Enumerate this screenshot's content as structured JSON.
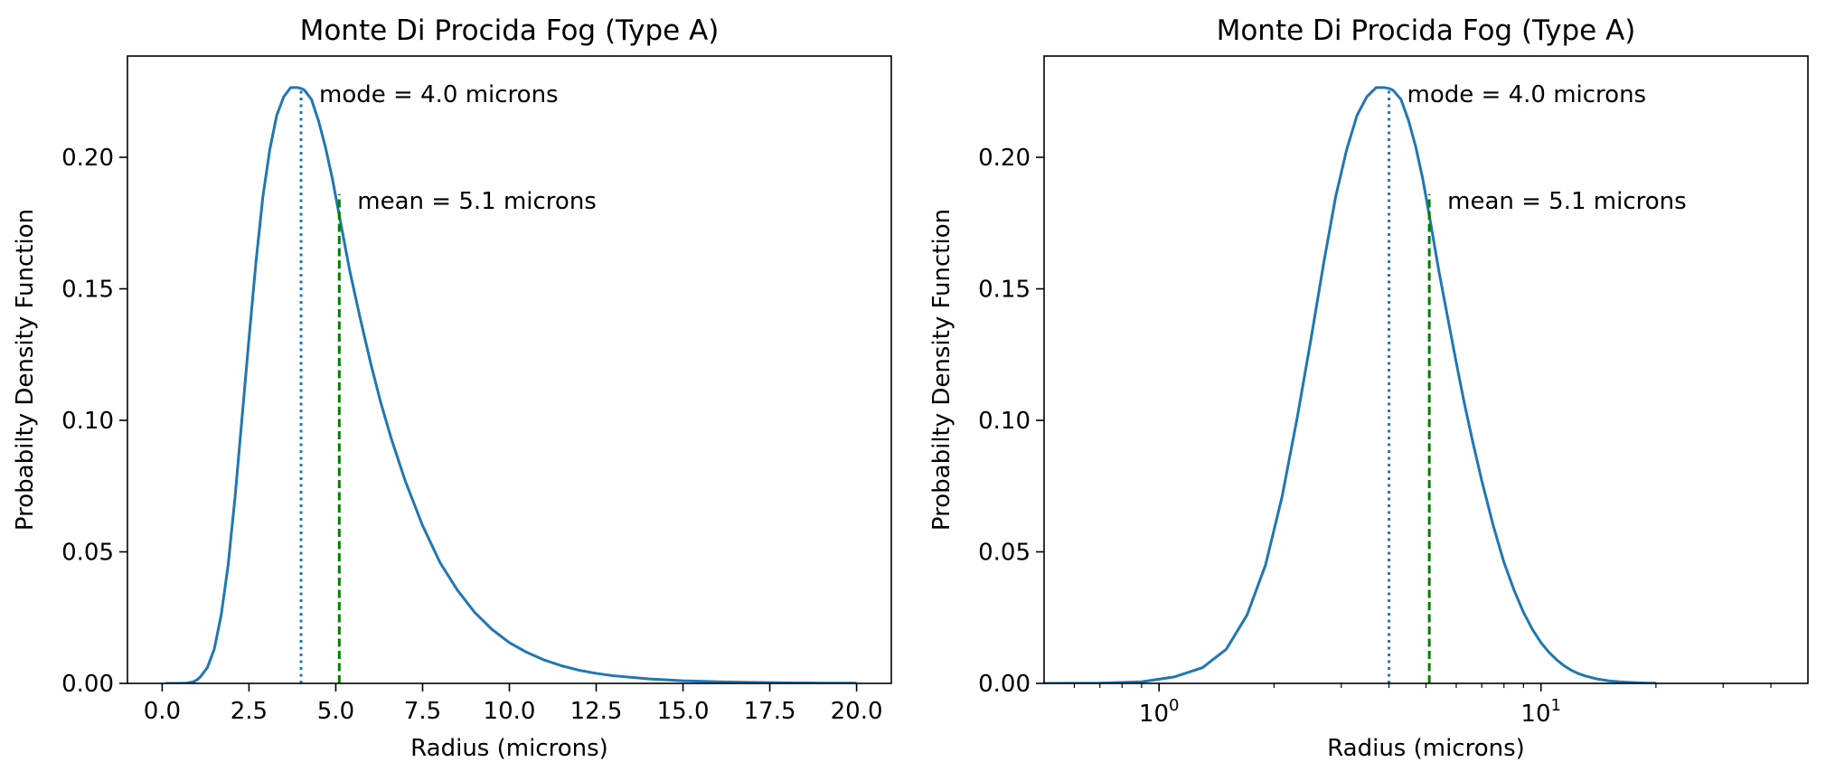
{
  "chart_data": [
    {
      "type": "line",
      "title": "Monte Di Procida Fog (Type A)",
      "xlabel": "Radius (microns)",
      "ylabel": "Probabilty Density Function",
      "xscale": "linear",
      "xlim": [
        -1.0,
        21.0
      ],
      "ylim": [
        0.0,
        0.2385
      ],
      "xticks": [
        0.0,
        2.5,
        5.0,
        7.5,
        10.0,
        12.5,
        15.0,
        17.5,
        20.0
      ],
      "xtick_labels": [
        "0.0",
        "2.5",
        "5.0",
        "7.5",
        "10.0",
        "12.5",
        "15.0",
        "17.5",
        "20.0"
      ],
      "yticks": [
        0.0,
        0.05,
        0.1,
        0.15,
        0.2
      ],
      "ytick_labels": [
        "0.00",
        "0.05",
        "0.10",
        "0.15",
        "0.20"
      ],
      "grid": false,
      "series_color": "#1f77b4",
      "x": [
        0.1,
        0.3,
        0.5,
        0.7,
        0.9,
        1.0,
        1.1,
        1.3,
        1.5,
        1.7,
        1.9,
        2.1,
        2.3,
        2.5,
        2.7,
        2.9,
        3.1,
        3.3,
        3.5,
        3.7,
        3.9,
        4.0,
        4.1,
        4.3,
        4.5,
        4.7,
        4.9,
        5.1,
        5.4,
        5.7,
        6.0,
        6.3,
        6.6,
        7.0,
        7.5,
        8.0,
        8.5,
        9.0,
        9.5,
        10.0,
        10.5,
        11.0,
        11.5,
        12.0,
        12.5,
        13.0,
        14.0,
        15.0,
        16.0,
        17.0,
        18.0,
        19.0,
        20.0
      ],
      "y": [
        0.0,
        0.0,
        0.0,
        0.0001,
        0.0006,
        0.0013,
        0.0025,
        0.006,
        0.013,
        0.026,
        0.045,
        0.071,
        0.101,
        0.131,
        0.16,
        0.185,
        0.203,
        0.216,
        0.223,
        0.2265,
        0.2265,
        0.2262,
        0.2255,
        0.222,
        0.214,
        0.204,
        0.192,
        0.178,
        0.157,
        0.139,
        0.122,
        0.1065,
        0.093,
        0.077,
        0.06,
        0.046,
        0.0355,
        0.027,
        0.0205,
        0.0155,
        0.0118,
        0.0089,
        0.0067,
        0.005,
        0.0038,
        0.0029,
        0.0017,
        0.001,
        0.0006,
        0.0004,
        0.0002,
        0.0001,
        0.0001
      ],
      "annotations": [
        {
          "text": "mode = 4.0 microns",
          "x": 4.0,
          "y": 0.2265,
          "line_style": "dotted",
          "color": "#1f77b4"
        },
        {
          "text": "mean = 5.1 microns",
          "x": 5.1,
          "y": 0.186,
          "line_style": "dashed",
          "color": "#008000"
        }
      ]
    },
    {
      "type": "line",
      "title": "Monte Di Procida Fog (Type A)",
      "xlabel": "Radius (microns)",
      "ylabel": "Probabilty Density Function",
      "xscale": "log",
      "xlim": [
        0.5,
        50.0
      ],
      "ylim": [
        0.0,
        0.2385
      ],
      "xticks": [
        1,
        10
      ],
      "xtick_labels": [
        "10^0",
        "10^1"
      ],
      "yticks": [
        0.0,
        0.05,
        0.1,
        0.15,
        0.2
      ],
      "ytick_labels": [
        "0.00",
        "0.05",
        "0.10",
        "0.15",
        "0.20"
      ],
      "grid": false,
      "series_color": "#1f77b4",
      "x": [
        0.5,
        0.7,
        0.9,
        1.1,
        1.3,
        1.5,
        1.7,
        1.9,
        2.1,
        2.3,
        2.5,
        2.7,
        2.9,
        3.1,
        3.3,
        3.5,
        3.7,
        3.9,
        4.0,
        4.1,
        4.3,
        4.5,
        4.7,
        4.9,
        5.1,
        5.4,
        5.7,
        6.0,
        6.3,
        6.6,
        7.0,
        7.5,
        8.0,
        8.5,
        9.0,
        9.5,
        10.0,
        10.5,
        11.0,
        11.5,
        12.0,
        12.5,
        13.0,
        14.0,
        15.0,
        16.0,
        17.0,
        18.0,
        19.0,
        20.0
      ],
      "y": [
        0.0,
        0.0001,
        0.0006,
        0.0025,
        0.006,
        0.013,
        0.026,
        0.045,
        0.071,
        0.101,
        0.131,
        0.16,
        0.185,
        0.203,
        0.216,
        0.223,
        0.2265,
        0.2265,
        0.2262,
        0.2255,
        0.222,
        0.214,
        0.204,
        0.192,
        0.178,
        0.157,
        0.139,
        0.122,
        0.1065,
        0.093,
        0.077,
        0.06,
        0.046,
        0.0355,
        0.027,
        0.0205,
        0.0155,
        0.0118,
        0.0089,
        0.0067,
        0.005,
        0.0038,
        0.0029,
        0.0017,
        0.001,
        0.0006,
        0.0004,
        0.0002,
        0.0001,
        0.0001
      ],
      "annotations": [
        {
          "text": "mode = 4.0 microns",
          "x": 4.0,
          "y": 0.2265,
          "line_style": "dotted",
          "color": "#1f77b4"
        },
        {
          "text": "mean = 5.1 microns",
          "x": 5.1,
          "y": 0.186,
          "line_style": "dashed",
          "color": "#008000"
        }
      ]
    }
  ]
}
